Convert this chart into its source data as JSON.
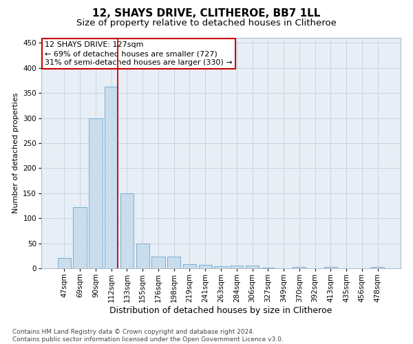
{
  "title": "12, SHAYS DRIVE, CLITHEROE, BB7 1LL",
  "subtitle": "Size of property relative to detached houses in Clitheroe",
  "xlabel": "Distribution of detached houses by size in Clitheroe",
  "ylabel": "Number of detached properties",
  "bar_labels": [
    "47sqm",
    "69sqm",
    "90sqm",
    "112sqm",
    "133sqm",
    "155sqm",
    "176sqm",
    "198sqm",
    "219sqm",
    "241sqm",
    "263sqm",
    "284sqm",
    "306sqm",
    "327sqm",
    "349sqm",
    "370sqm",
    "392sqm",
    "413sqm",
    "435sqm",
    "456sqm",
    "478sqm"
  ],
  "bar_values": [
    20,
    122,
    300,
    363,
    150,
    50,
    23,
    23,
    8,
    7,
    4,
    5,
    5,
    2,
    0,
    3,
    0,
    3,
    0,
    0,
    3
  ],
  "bar_color": "#c9dded",
  "bar_edge_color": "#7aafd4",
  "grid_color": "#c8d4e0",
  "background_color": "#e8eef5",
  "ylim": [
    0,
    460
  ],
  "yticks": [
    0,
    50,
    100,
    150,
    200,
    250,
    300,
    350,
    400,
    450
  ],
  "annotation_line_color": "#cc0000",
  "annotation_box_text_line1": "12 SHAYS DRIVE: 127sqm",
  "annotation_box_text_line2": "← 69% of detached houses are smaller (727)",
  "annotation_box_text_line3": "31% of semi-detached houses are larger (330) →",
  "annotation_box_edge_color": "#cc0000",
  "footer_text": "Contains HM Land Registry data © Crown copyright and database right 2024.\nContains public sector information licensed under the Open Government Licence v3.0.",
  "title_fontsize": 11,
  "subtitle_fontsize": 9.5,
  "xlabel_fontsize": 9,
  "ylabel_fontsize": 8,
  "tick_fontsize": 7.5,
  "annotation_fontsize": 8,
  "footer_fontsize": 6.5
}
